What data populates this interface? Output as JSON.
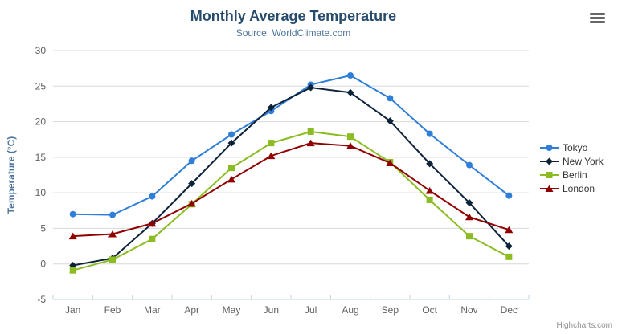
{
  "header": {
    "title": "Monthly Average Temperature",
    "subtitle": "Source: WorldClimate.com"
  },
  "toolbar": {
    "menu_icon": "hamburger-export-menu"
  },
  "credits": {
    "label": "Highcharts.com"
  },
  "colors": {
    "title": "#274b6d",
    "subtitle": "#4d759e",
    "axis_labels": "#606060",
    "grid_line": "#d8d8d8",
    "axis_line": "#c0d0e0",
    "legend_text": "#333333"
  },
  "chart_data": {
    "type": "line",
    "title": "Monthly Average Temperature",
    "subtitle": "Source: WorldClimate.com",
    "categories": [
      "Jan",
      "Feb",
      "Mar",
      "Apr",
      "May",
      "Jun",
      "Jul",
      "Aug",
      "Sep",
      "Oct",
      "Nov",
      "Dec"
    ],
    "series": [
      {
        "name": "Tokyo",
        "color": "#2f7ed8",
        "marker": "circle",
        "values": [
          7.0,
          6.9,
          9.5,
          14.5,
          18.2,
          21.5,
          25.2,
          26.5,
          23.3,
          18.3,
          13.9,
          9.6
        ]
      },
      {
        "name": "New York",
        "color": "#0d233a",
        "marker": "diamond",
        "values": [
          -0.2,
          0.8,
          5.7,
          11.3,
          17.0,
          22.0,
          24.8,
          24.1,
          20.1,
          14.1,
          8.6,
          2.5
        ]
      },
      {
        "name": "Berlin",
        "color": "#8bbc21",
        "marker": "square",
        "values": [
          -0.9,
          0.6,
          3.5,
          8.4,
          13.5,
          17.0,
          18.6,
          17.9,
          14.3,
          9.0,
          3.9,
          1.0
        ]
      },
      {
        "name": "London",
        "color": "#910000",
        "marker": "triangle",
        "values": [
          3.9,
          4.2,
          5.7,
          8.5,
          11.9,
          15.2,
          17.0,
          16.6,
          14.2,
          10.3,
          6.6,
          4.8
        ]
      }
    ],
    "xlabel": "",
    "ylabel": "Temperature (°C)",
    "ylim": [
      -5,
      30
    ],
    "ytick": 5,
    "grid": true,
    "legend_position": "right"
  }
}
